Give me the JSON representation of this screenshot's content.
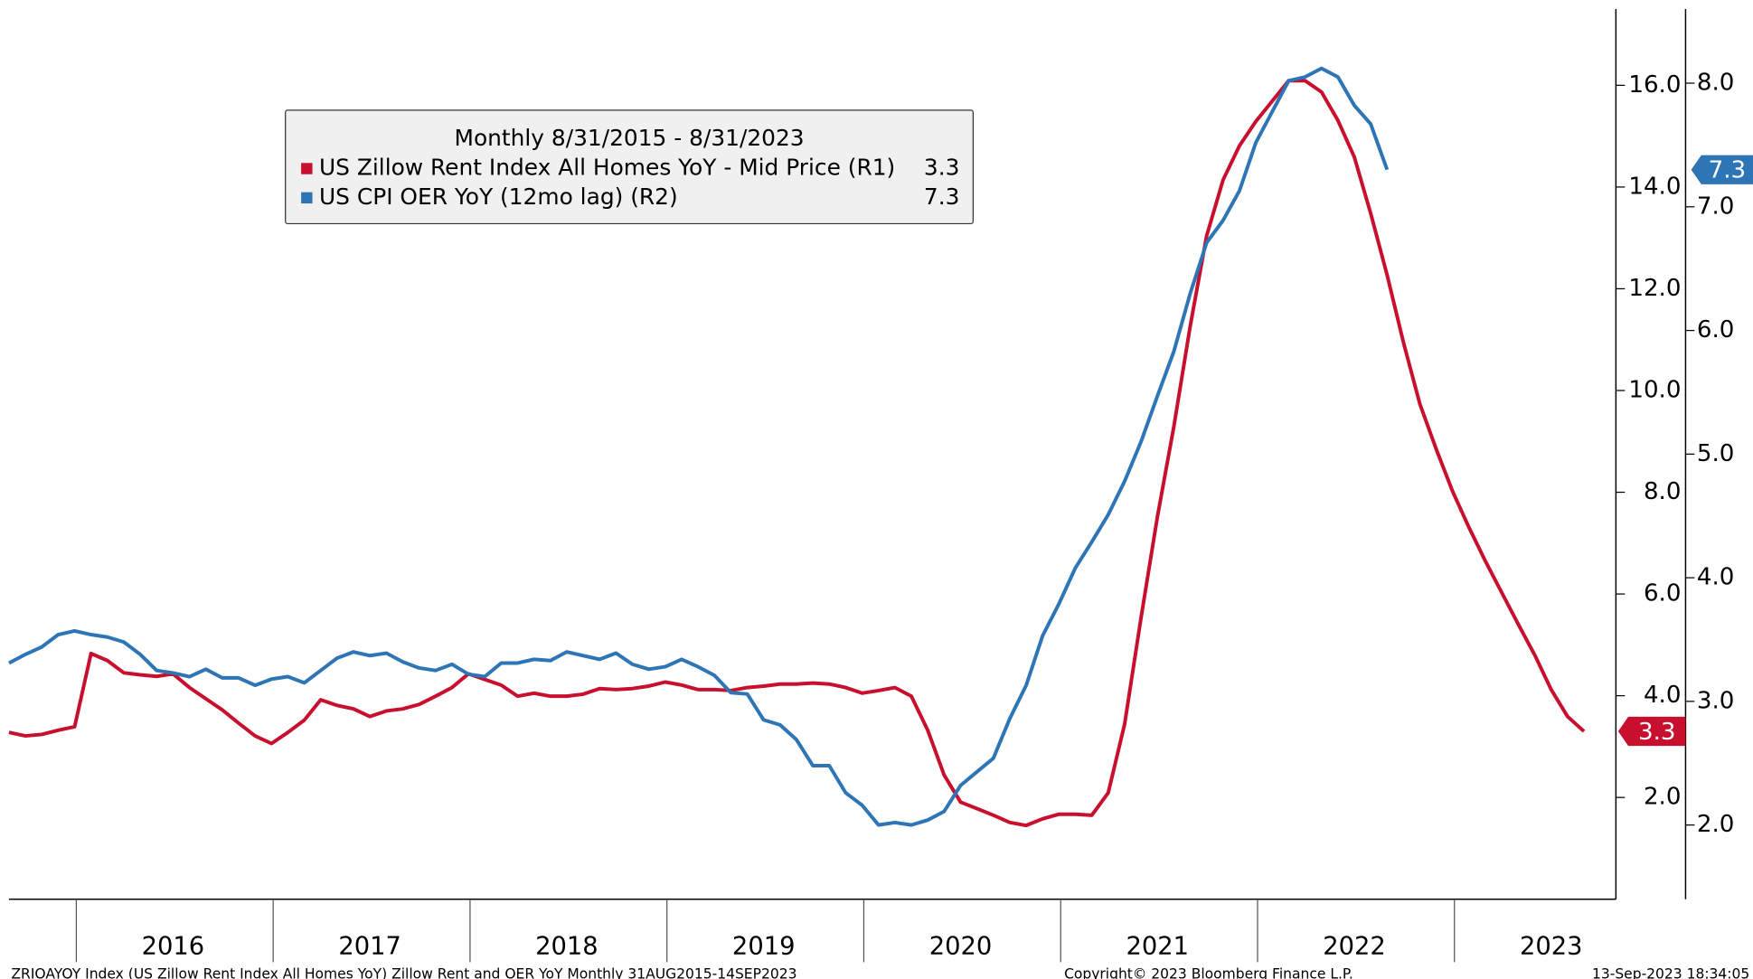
{
  "chart_data": {
    "type": "line",
    "legend_title": "Monthly 8/31/2015 - 8/31/2023",
    "categories": [
      null,
      null,
      null,
      null,
      null,
      null,
      null,
      null,
      null,
      null,
      "2016",
      null,
      null,
      null,
      null,
      null,
      null,
      null,
      null,
      null,
      null,
      null,
      "2017",
      null,
      null,
      null,
      null,
      null,
      null,
      null,
      null,
      null,
      null,
      null,
      "2018",
      null,
      null,
      null,
      null,
      null,
      null,
      null,
      null,
      null,
      null,
      null,
      "2019",
      null,
      null,
      null,
      null,
      null,
      null,
      null,
      null,
      null,
      null,
      null,
      "2020",
      null,
      null,
      null,
      null,
      null,
      null,
      null,
      null,
      null,
      null,
      null,
      "2021",
      null,
      null,
      null,
      null,
      null,
      null,
      null,
      null,
      null,
      null,
      null,
      "2022",
      null,
      null,
      null,
      null,
      null,
      null,
      null,
      null,
      null,
      null,
      null,
      "2023",
      null,
      null
    ],
    "series": [
      {
        "name": "US Zillow Rent Index All Homes YoY - Mid Price (R1)",
        "color": "#c8102e",
        "last_value_label": "3.3",
        "values": [
          3.28,
          3.21,
          3.24,
          3.32,
          3.39,
          4.83,
          4.69,
          4.45,
          4.41,
          4.38,
          4.43,
          4.16,
          3.94,
          3.72,
          3.46,
          3.21,
          3.06,
          3.28,
          3.52,
          3.92,
          3.81,
          3.74,
          3.59,
          3.7,
          3.74,
          3.83,
          3.99,
          4.16,
          4.43,
          4.32,
          4.21,
          3.99,
          4.05,
          3.99,
          3.99,
          4.03,
          4.14,
          4.12,
          4.14,
          4.19,
          4.27,
          4.21,
          4.12,
          4.12,
          4.1,
          4.16,
          4.19,
          4.23,
          4.23,
          4.25,
          4.23,
          4.16,
          4.05,
          4.1,
          4.16,
          3.99,
          3.32,
          2.44,
          1.91,
          1.78,
          1.65,
          1.51,
          1.45,
          1.58,
          1.67,
          1.67,
          1.65,
          2.09,
          3.44,
          5.53,
          7.52,
          9.29,
          11.27,
          13.04,
          14.14,
          14.81,
          15.29,
          15.69,
          16.09,
          16.09,
          15.87,
          15.31,
          14.59,
          13.48,
          12.27,
          10.94,
          9.73,
          8.84,
          8.01,
          7.3,
          6.64,
          6.02,
          5.4,
          4.8,
          4.12,
          3.59,
          3.3
        ]
      },
      {
        "name": "US CPI OER YoY (12mo lag) (R2)",
        "color": "#2e75b6",
        "axis": "y2",
        "last_value_label": "7.3",
        "values": [
          3.31,
          3.38,
          3.44,
          3.54,
          3.57,
          3.54,
          3.52,
          3.48,
          3.38,
          3.25,
          3.23,
          3.2,
          3.26,
          3.19,
          3.19,
          3.13,
          3.18,
          3.2,
          3.15,
          3.25,
          3.35,
          3.4,
          3.37,
          3.39,
          3.32,
          3.27,
          3.25,
          3.3,
          3.22,
          3.2,
          3.31,
          3.31,
          3.34,
          3.33,
          3.4,
          3.37,
          3.34,
          3.39,
          3.3,
          3.26,
          3.28,
          3.34,
          3.28,
          3.21,
          3.07,
          3.06,
          2.85,
          2.81,
          2.69,
          2.48,
          2.48,
          2.26,
          2.16,
          2.0,
          2.02,
          2.0,
          2.04,
          2.11,
          2.32,
          2.43,
          2.54,
          2.86,
          3.13,
          3.53,
          3.79,
          4.08,
          4.29,
          4.51,
          4.78,
          5.1,
          5.47,
          5.83,
          6.3,
          6.71,
          6.89,
          7.13,
          7.52,
          7.77,
          8.02,
          8.05,
          8.12,
          8.05,
          7.82,
          7.67,
          7.3,
          null,
          null,
          null,
          null,
          null,
          null,
          null,
          null,
          null,
          null,
          null,
          null
        ]
      }
    ],
    "ylim": [
      0,
      17.5
    ],
    "yticks": [
      {
        "value": 2,
        "label": "2.0"
      },
      {
        "value": 4,
        "label": "4.0"
      },
      {
        "value": 6,
        "label": "6.0"
      },
      {
        "value": 8,
        "label": "8.0"
      },
      {
        "value": 10,
        "label": "10.0"
      },
      {
        "value": 12,
        "label": "12.0"
      },
      {
        "value": 14,
        "label": "14.0"
      },
      {
        "value": 16,
        "label": "16.0"
      }
    ],
    "y2lim": [
      1.4,
      8.6
    ],
    "y2ticks": [
      {
        "value": 2,
        "label": "2.0"
      },
      {
        "value": 3,
        "label": "3.0"
      },
      {
        "value": 4,
        "label": "4.0"
      },
      {
        "value": 5,
        "label": "5.0"
      },
      {
        "value": 6,
        "label": "6.0"
      },
      {
        "value": 7,
        "label": "7.0"
      },
      {
        "value": 8,
        "label": "8.0"
      }
    ],
    "footer_left": "ZRIOAYOY Index (US Zillow Rent Index All Homes YoY) Zillow Rent and OER YoY  Monthly 31AUG2015-14SEP2023",
    "footer_center": "Copyright© 2023 Bloomberg Finance L.P.",
    "footer_right": "13-Sep-2023 18:34:05"
  }
}
